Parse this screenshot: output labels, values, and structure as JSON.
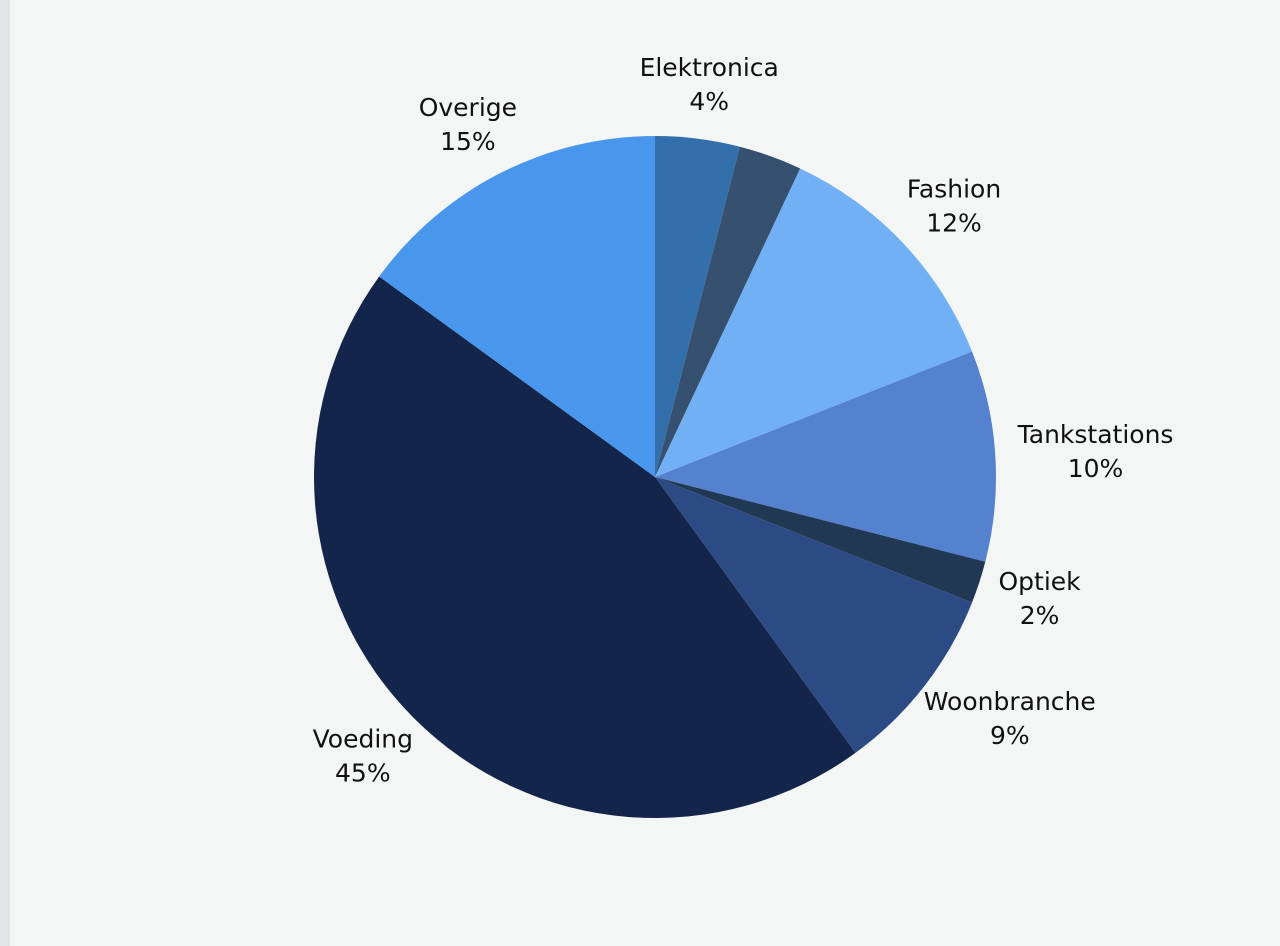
{
  "chart_data": {
    "type": "pie",
    "categories": [
      "Elektronica",
      null,
      "Fashion",
      "Tankstations",
      "Optiek",
      "Woonbranche",
      "Voeding",
      "Overige"
    ],
    "values": [
      4,
      3,
      12,
      10,
      2,
      9,
      45,
      15
    ],
    "value_labels": [
      "4%",
      null,
      "12%",
      "10%",
      "2%",
      "9%",
      "45%",
      "15%"
    ],
    "colors": [
      "#3370ab",
      "#36516f",
      "#72b0f5",
      "#5582cf",
      "#213854",
      "#2c4a83",
      "#13254b",
      "#4897ec"
    ]
  }
}
